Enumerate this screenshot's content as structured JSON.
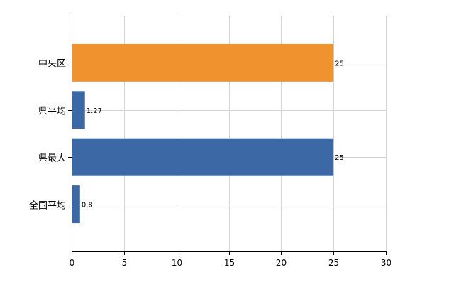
{
  "chart_data": {
    "type": "bar",
    "orientation": "horizontal",
    "categories": [
      "中央区",
      "県平均",
      "県最大",
      "全国平均"
    ],
    "values": [
      25,
      1.27,
      25,
      0.8
    ],
    "data_labels": [
      "25",
      "1.27",
      "25",
      "0.8"
    ],
    "bar_colors": [
      "#F0922E",
      "#3C68A6",
      "#3C68A6",
      "#3C68A6"
    ],
    "title": "",
    "xlabel": "",
    "ylabel": "",
    "xlim": [
      0,
      30
    ],
    "x_ticks": [
      0,
      5,
      10,
      15,
      20,
      25,
      30
    ],
    "x_tick_labels": [
      "0",
      "5",
      "10",
      "15",
      "20",
      "25",
      "30"
    ],
    "grid": true,
    "legend": "none"
  }
}
